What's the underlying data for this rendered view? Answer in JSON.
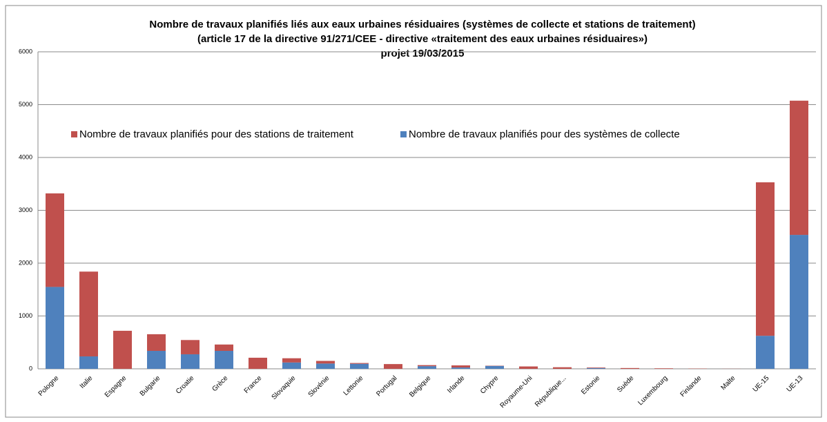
{
  "chart_data": {
    "type": "stacked_bar",
    "title": [
      "Nombre de travaux planifiés liés aux eaux urbaines résiduaires (systèmes de collecte et stations de traitement)",
      "(article 17 de la directive 91/271/CEE - directive «traitement des eaux urbaines résiduaires»)",
      "projet 19/03/2015"
    ],
    "categories": [
      "Pologne",
      "Italie",
      "Espagne",
      "Bulgarie",
      "Croatie",
      "Grèce",
      "France",
      "Slovaquie",
      "Slovénie",
      "Lettonie",
      "Portugal",
      "Belgique",
      "Irlande",
      "Chypre",
      "Royaume-Uni",
      "République...",
      "Estonie",
      "Suède",
      "Luxembourg",
      "Finlande",
      "Malte",
      "UE-15",
      "UE-13"
    ],
    "series": [
      {
        "name": "Nombre de travaux planifiés pour des systèmes de collecte",
        "color": "#4f81bd",
        "values": [
          1550,
          235,
          0,
          340,
          275,
          340,
          0,
          120,
          100,
          95,
          0,
          50,
          25,
          55,
          0,
          0,
          15,
          0,
          0,
          0,
          0,
          625,
          2535
        ]
      },
      {
        "name": "Nombre de travaux planifiés pour des stations de traitement",
        "color": "#c0504d",
        "values": [
          1770,
          1605,
          720,
          315,
          270,
          120,
          210,
          80,
          50,
          15,
          90,
          20,
          40,
          5,
          45,
          30,
          10,
          15,
          10,
          5,
          2,
          2905,
          2540
        ]
      }
    ],
    "ylim": [
      0,
      6000
    ],
    "yticks": [
      0,
      1000,
      2000,
      3000,
      4000,
      5000,
      6000
    ],
    "grid": true
  }
}
